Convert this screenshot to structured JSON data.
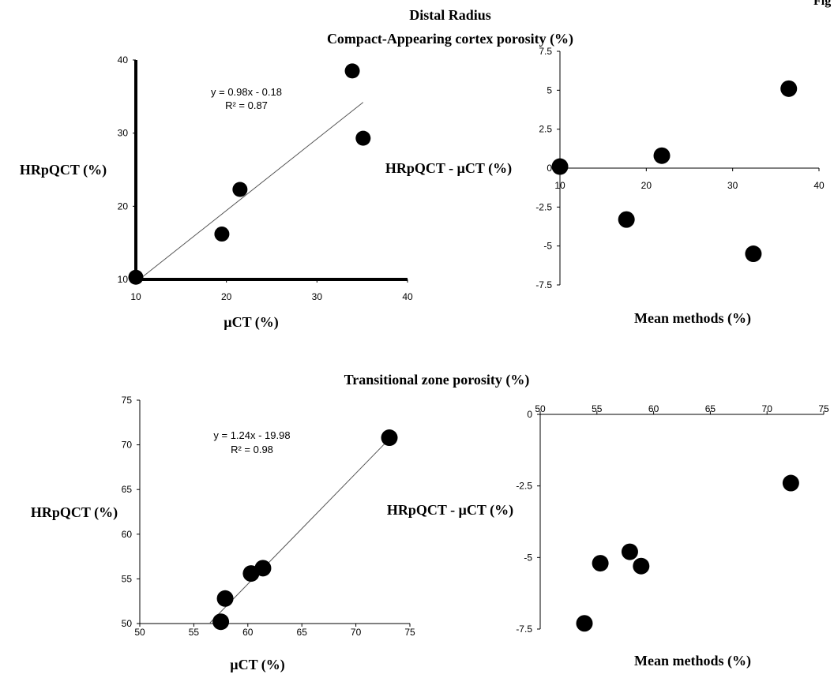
{
  "page": {
    "corner_mark": "Fig",
    "section_title": "Distal Radius",
    "panel_row1_title": "Compact-Appearing cortex porosity (%)",
    "panel_row2_title": "Transitional zone porosity (%)"
  },
  "chart_data": [
    {
      "type": "scatter",
      "title": "Compact-Appearing cortex porosity (%)",
      "xlabel": "µCT (%)",
      "ylabel": "HRpQCT (%)",
      "xlim": [
        10,
        40
      ],
      "ylim": [
        10,
        40
      ],
      "xticks": [
        10,
        20,
        30,
        40
      ],
      "yticks": [
        10,
        20,
        30,
        40
      ],
      "points": [
        {
          "x": 10.0,
          "y": 10.3
        },
        {
          "x": 19.5,
          "y": 16.2
        },
        {
          "x": 21.5,
          "y": 22.3
        },
        {
          "x": 33.9,
          "y": 38.5
        },
        {
          "x": 35.1,
          "y": 29.3
        }
      ],
      "trendline": {
        "slope": 0.98,
        "intercept": -0.18,
        "x_range": [
          10,
          35.1
        ]
      },
      "equation": "y = 0.98x - 0.18",
      "r2": "R² = 0.87",
      "grid": false
    },
    {
      "type": "scatter",
      "title": "",
      "xlabel": "Mean methods (%)",
      "ylabel": "HRpQCT - µCT (%)",
      "xlim": [
        10,
        40
      ],
      "ylim": [
        -7.5,
        7.5
      ],
      "xticks": [
        10,
        20,
        30,
        40
      ],
      "yticks": [
        7.5,
        5,
        2.5,
        0,
        -2.5,
        -5,
        -7.5
      ],
      "ytick_labels": [
        "7.5",
        "5",
        "2.5",
        "0",
        "-2.5",
        "-5",
        "-7.5"
      ],
      "points": [
        {
          "x": 10.0,
          "y": 0.1
        },
        {
          "x": 17.7,
          "y": -3.3
        },
        {
          "x": 21.8,
          "y": 0.8
        },
        {
          "x": 32.4,
          "y": -5.5
        },
        {
          "x": 36.5,
          "y": 5.1
        }
      ],
      "grid": false
    },
    {
      "type": "scatter",
      "title": "Transitional zone porosity (%)",
      "xlabel": "µCT (%)",
      "ylabel": "HRpQCT (%)",
      "xlim": [
        50,
        75
      ],
      "ylim": [
        50,
        75
      ],
      "xticks": [
        50,
        55,
        60,
        65,
        70,
        75
      ],
      "yticks": [
        50,
        55,
        60,
        65,
        70,
        75
      ],
      "points": [
        {
          "x": 57.5,
          "y": 50.2
        },
        {
          "x": 57.9,
          "y": 52.8
        },
        {
          "x": 60.3,
          "y": 55.6
        },
        {
          "x": 61.4,
          "y": 56.2
        },
        {
          "x": 73.1,
          "y": 70.8
        }
      ],
      "trendline": {
        "slope": 1.24,
        "intercept": -19.98,
        "x_range": [
          56.5,
          73.1
        ]
      },
      "equation": "y = 1.24x - 19.98",
      "r2": "R² = 0.98",
      "grid": false
    },
    {
      "type": "scatter",
      "title": "",
      "xlabel": "Mean methods (%)",
      "ylabel": "HRpQCT - µCT (%)",
      "xlim": [
        50,
        75
      ],
      "ylim": [
        -7.5,
        0
      ],
      "xticks": [
        50,
        55,
        60,
        65,
        70,
        75
      ],
      "yticks": [
        0,
        -2.5,
        -5,
        -7.5
      ],
      "ytick_labels": [
        "0",
        "-2.5",
        "-5",
        "-7.5"
      ],
      "points": [
        {
          "x": 53.9,
          "y": -7.3
        },
        {
          "x": 55.3,
          "y": -5.2
        },
        {
          "x": 57.9,
          "y": -4.8
        },
        {
          "x": 58.9,
          "y": -5.3
        },
        {
          "x": 72.1,
          "y": -2.4
        }
      ],
      "grid": false
    }
  ]
}
